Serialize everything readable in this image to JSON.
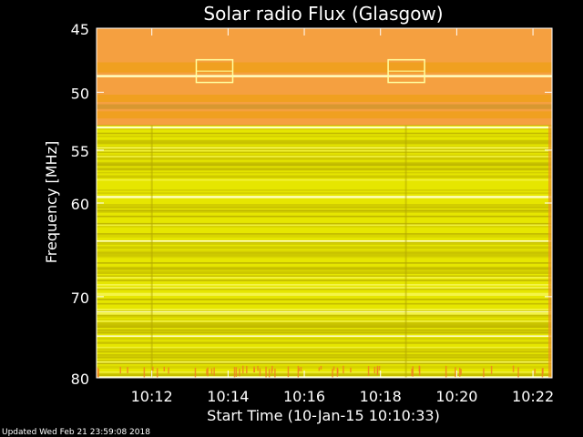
{
  "chart_data": {
    "type": "heatmap",
    "title": "Solar radio Flux (Glasgow)",
    "xlabel": "Start Time (10-Jan-15 10:10:33)",
    "ylabel": "Frequency [MHz]",
    "x_ticks": [
      "10:12",
      "10:14",
      "10:16",
      "10:18",
      "10:20",
      "10:22"
    ],
    "y_ticks": [
      45,
      50,
      55,
      60,
      70,
      80
    ],
    "y_scale": "log",
    "ylim": [
      45,
      80
    ],
    "xlim": [
      "10:10:33",
      "10:22:30"
    ],
    "colors": {
      "high": "#f5a040",
      "mid": "#f0a020",
      "body": "#e6e600",
      "dark": "#b3a800",
      "bright": "#ffff80"
    }
  },
  "footer": {
    "updated": "Updated Wed Feb 21 23:59:08 2018"
  }
}
